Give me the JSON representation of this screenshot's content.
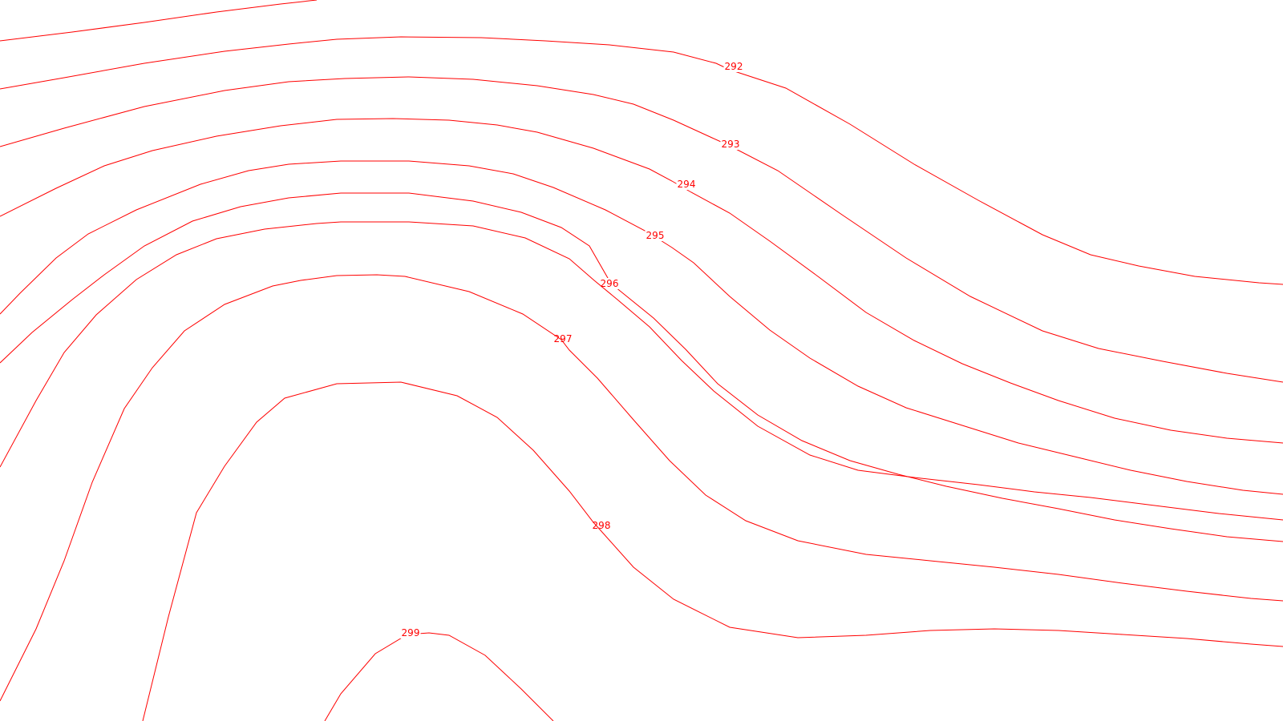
{
  "map": {
    "line_color": "#ff0000",
    "background_color": "#ffffff",
    "contours": [
      {
        "id": "unlabeled-top",
        "label": ""
      },
      {
        "id": "c292",
        "label": "292"
      },
      {
        "id": "c293",
        "label": "293"
      },
      {
        "id": "c294",
        "label": "294"
      },
      {
        "id": "c295",
        "label": "295"
      },
      {
        "id": "c296",
        "label": "296"
      },
      {
        "id": "c297",
        "label": "297"
      },
      {
        "id": "c298",
        "label": "298"
      },
      {
        "id": "c299",
        "label": "299"
      }
    ]
  }
}
